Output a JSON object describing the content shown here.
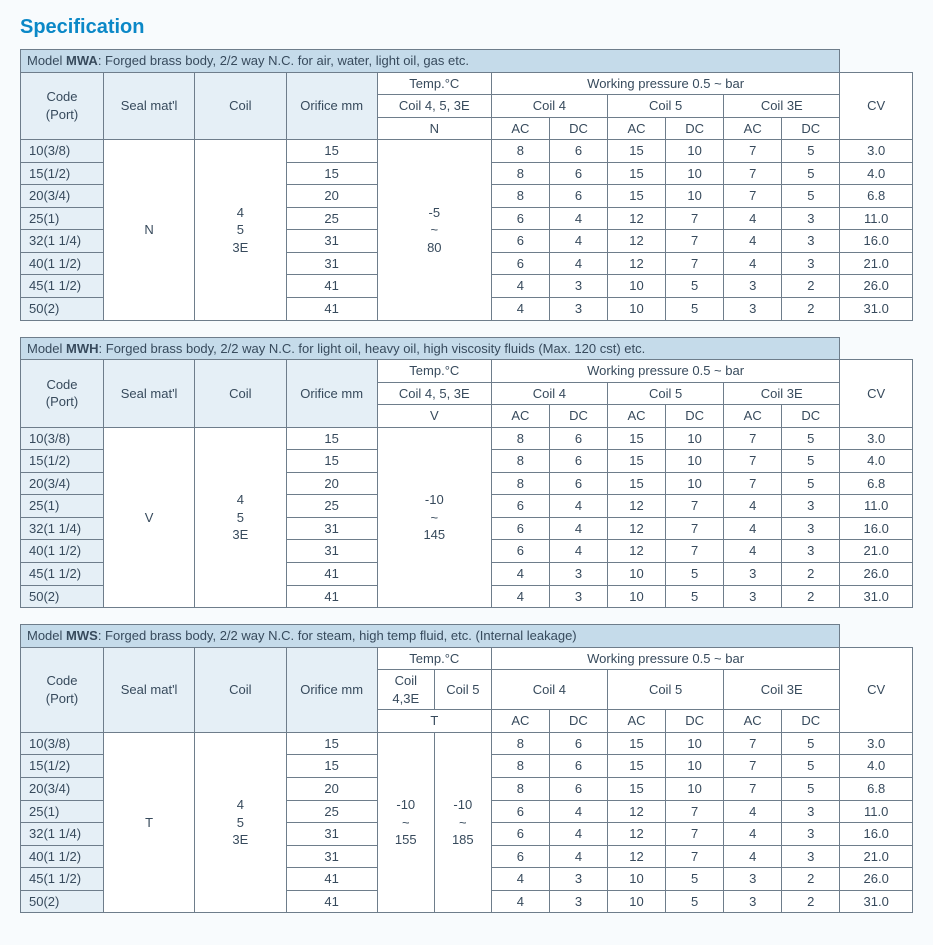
{
  "page_title": "Specification",
  "common": {
    "hdr_code": "Code\n(Port)",
    "hdr_seal": "Seal mat'l",
    "hdr_coil": "Coil",
    "hdr_orifice": "Orifice mm",
    "hdr_temp": "Temp.°C",
    "hdr_working_pressure": "Working pressure 0.5 ~ bar",
    "hdr_cv": "CV",
    "hdr_coil4": "Coil 4",
    "hdr_coil5": "Coil 5",
    "hdr_coil3e": "Coil 3E",
    "hdr_ac": "AC",
    "hdr_dc": "DC",
    "tilde": "~"
  },
  "tables": [
    {
      "model_label": "Model ",
      "model_code": "MWA",
      "model_desc": ": Forged brass body, 2/2 way N.C. for air, water, light oil, gas etc.",
      "seal": "N",
      "coil": "4\n5\n3E",
      "temp_header_sub": "Coil 4, 5, 3E",
      "temp_sub2_a": "N",
      "temp_sub2_b": "",
      "temp_split": false,
      "temp_value_a": "-5\n~\n80",
      "temp_value_b": "",
      "rows": [
        {
          "code": "10(3/8)",
          "orifice": "15",
          "c4ac": "8",
          "c4dc": "6",
          "c5ac": "15",
          "c5dc": "10",
          "c3ac": "7",
          "c3dc": "5",
          "cv": "3.0"
        },
        {
          "code": "15(1/2)",
          "orifice": "15",
          "c4ac": "8",
          "c4dc": "6",
          "c5ac": "15",
          "c5dc": "10",
          "c3ac": "7",
          "c3dc": "5",
          "cv": "4.0"
        },
        {
          "code": "20(3/4)",
          "orifice": "20",
          "c4ac": "8",
          "c4dc": "6",
          "c5ac": "15",
          "c5dc": "10",
          "c3ac": "7",
          "c3dc": "5",
          "cv": "6.8"
        },
        {
          "code": "25(1)",
          "orifice": "25",
          "c4ac": "6",
          "c4dc": "4",
          "c5ac": "12",
          "c5dc": "7",
          "c3ac": "4",
          "c3dc": "3",
          "cv": "11.0"
        },
        {
          "code": "32(1 1/4)",
          "orifice": "31",
          "c4ac": "6",
          "c4dc": "4",
          "c5ac": "12",
          "c5dc": "7",
          "c3ac": "4",
          "c3dc": "3",
          "cv": "16.0"
        },
        {
          "code": "40(1 1/2)",
          "orifice": "31",
          "c4ac": "6",
          "c4dc": "4",
          "c5ac": "12",
          "c5dc": "7",
          "c3ac": "4",
          "c3dc": "3",
          "cv": "21.0"
        },
        {
          "code": "45(1 1/2)",
          "orifice": "41",
          "c4ac": "4",
          "c4dc": "3",
          "c5ac": "10",
          "c5dc": "5",
          "c3ac": "3",
          "c3dc": "2",
          "cv": "26.0"
        },
        {
          "code": "50(2)",
          "orifice": "41",
          "c4ac": "4",
          "c4dc": "3",
          "c5ac": "10",
          "c5dc": "5",
          "c3ac": "3",
          "c3dc": "2",
          "cv": "31.0"
        }
      ]
    },
    {
      "model_label": "Model ",
      "model_code": "MWH",
      "model_desc": ": Forged brass body, 2/2 way N.C. for light oil, heavy oil, high viscosity fluids (Max. 120 cst) etc.",
      "seal": "V",
      "coil": "4\n5\n3E",
      "temp_header_sub": "Coil 4, 5, 3E",
      "temp_sub2_a": "V",
      "temp_sub2_b": "",
      "temp_split": false,
      "temp_value_a": "-10\n~\n145",
      "temp_value_b": "",
      "rows": [
        {
          "code": "10(3/8)",
          "orifice": "15",
          "c4ac": "8",
          "c4dc": "6",
          "c5ac": "15",
          "c5dc": "10",
          "c3ac": "7",
          "c3dc": "5",
          "cv": "3.0"
        },
        {
          "code": "15(1/2)",
          "orifice": "15",
          "c4ac": "8",
          "c4dc": "6",
          "c5ac": "15",
          "c5dc": "10",
          "c3ac": "7",
          "c3dc": "5",
          "cv": "4.0"
        },
        {
          "code": "20(3/4)",
          "orifice": "20",
          "c4ac": "8",
          "c4dc": "6",
          "c5ac": "15",
          "c5dc": "10",
          "c3ac": "7",
          "c3dc": "5",
          "cv": "6.8"
        },
        {
          "code": "25(1)",
          "orifice": "25",
          "c4ac": "6",
          "c4dc": "4",
          "c5ac": "12",
          "c5dc": "7",
          "c3ac": "4",
          "c3dc": "3",
          "cv": "11.0"
        },
        {
          "code": "32(1 1/4)",
          "orifice": "31",
          "c4ac": "6",
          "c4dc": "4",
          "c5ac": "12",
          "c5dc": "7",
          "c3ac": "4",
          "c3dc": "3",
          "cv": "16.0"
        },
        {
          "code": "40(1 1/2)",
          "orifice": "31",
          "c4ac": "6",
          "c4dc": "4",
          "c5ac": "12",
          "c5dc": "7",
          "c3ac": "4",
          "c3dc": "3",
          "cv": "21.0"
        },
        {
          "code": "45(1 1/2)",
          "orifice": "41",
          "c4ac": "4",
          "c4dc": "3",
          "c5ac": "10",
          "c5dc": "5",
          "c3ac": "3",
          "c3dc": "2",
          "cv": "26.0"
        },
        {
          "code": "50(2)",
          "orifice": "41",
          "c4ac": "4",
          "c4dc": "3",
          "c5ac": "10",
          "c5dc": "5",
          "c3ac": "3",
          "c3dc": "2",
          "cv": "31.0"
        }
      ]
    },
    {
      "model_label": "Model ",
      "model_code": "MWS",
      "model_desc": ": Forged brass body, 2/2 way N.C. for steam, high temp fluid, etc. (Internal leakage)",
      "seal": "T",
      "coil": "4\n5\n3E",
      "temp_header_sub_a": "Coil 4,3E",
      "temp_header_sub_b": "Coil 5",
      "temp_sub2_full": "T",
      "temp_split": true,
      "temp_value_a": "-10\n~\n155",
      "temp_value_b": "-10\n~\n185",
      "rows": [
        {
          "code": "10(3/8)",
          "orifice": "15",
          "c4ac": "8",
          "c4dc": "6",
          "c5ac": "15",
          "c5dc": "10",
          "c3ac": "7",
          "c3dc": "5",
          "cv": "3.0"
        },
        {
          "code": "15(1/2)",
          "orifice": "15",
          "c4ac": "8",
          "c4dc": "6",
          "c5ac": "15",
          "c5dc": "10",
          "c3ac": "7",
          "c3dc": "5",
          "cv": "4.0"
        },
        {
          "code": "20(3/4)",
          "orifice": "20",
          "c4ac": "8",
          "c4dc": "6",
          "c5ac": "15",
          "c5dc": "10",
          "c3ac": "7",
          "c3dc": "5",
          "cv": "6.8"
        },
        {
          "code": "25(1)",
          "orifice": "25",
          "c4ac": "6",
          "c4dc": "4",
          "c5ac": "12",
          "c5dc": "7",
          "c3ac": "4",
          "c3dc": "3",
          "cv": "11.0"
        },
        {
          "code": "32(1 1/4)",
          "orifice": "31",
          "c4ac": "6",
          "c4dc": "4",
          "c5ac": "12",
          "c5dc": "7",
          "c3ac": "4",
          "c3dc": "3",
          "cv": "16.0"
        },
        {
          "code": "40(1 1/2)",
          "orifice": "31",
          "c4ac": "6",
          "c4dc": "4",
          "c5ac": "12",
          "c5dc": "7",
          "c3ac": "4",
          "c3dc": "3",
          "cv": "21.0"
        },
        {
          "code": "45(1 1/2)",
          "orifice": "41",
          "c4ac": "4",
          "c4dc": "3",
          "c5ac": "10",
          "c5dc": "5",
          "c3ac": "3",
          "c3dc": "2",
          "cv": "26.0"
        },
        {
          "code": "50(2)",
          "orifice": "41",
          "c4ac": "4",
          "c4dc": "3",
          "c5ac": "10",
          "c5dc": "5",
          "c3ac": "3",
          "c3dc": "2",
          "cv": "31.0"
        }
      ]
    }
  ]
}
